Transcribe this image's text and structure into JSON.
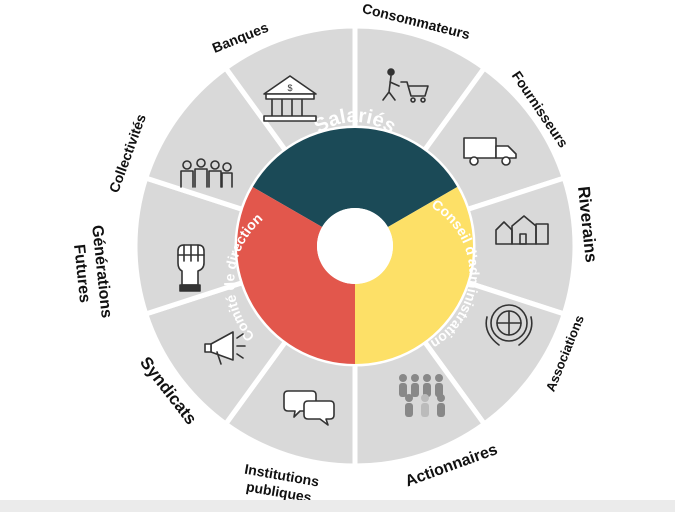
{
  "inner_ring": [
    {
      "label": "Salariés",
      "color": "#1b4a57",
      "text_color": "#ffffff"
    },
    {
      "label": "Conseil d'administration",
      "color": "#fde067",
      "text_color": "#ffffff"
    },
    {
      "label": "Comité de direction",
      "color": "#e2574c",
      "text_color": "#ffffff"
    }
  ],
  "outer_ring": {
    "segment_color": "#d9d9d9",
    "separator_color": "#ffffff",
    "label_color": "#111111",
    "stakeholders": [
      {
        "label": "Consommateurs",
        "icon": "shopping-cart-icon"
      },
      {
        "label": "Fournisseurs",
        "icon": "delivery-truck-icon"
      },
      {
        "label": "Riverains",
        "icon": "houses-icon"
      },
      {
        "label": "Associations",
        "icon": "un-emblem-icon"
      },
      {
        "label": "Actionnaires",
        "icon": "people-group-icon"
      },
      {
        "label": "Institutions publiques",
        "icon": "speech-bubbles-icon"
      },
      {
        "label": "Syndicats",
        "icon": "megaphone-icon"
      },
      {
        "label": "Générations Futures",
        "icon": "raised-fist-icon"
      },
      {
        "label": "Collectivités",
        "icon": "crowd-icon"
      },
      {
        "label": "Banques",
        "icon": "bank-building-icon"
      }
    ]
  }
}
